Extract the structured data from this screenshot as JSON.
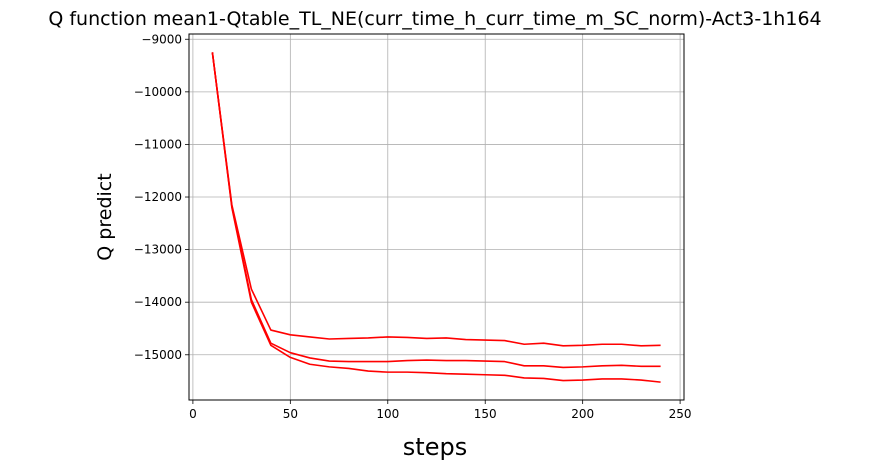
{
  "chart_data": {
    "type": "line",
    "title": "Q function mean1-Qtable_TL_NE(curr_time_h_curr_time_m_SC_norm)-Act3-1h164",
    "xlabel": "steps",
    "ylabel": "Q predict",
    "xlim": [
      -2,
      252
    ],
    "ylim": [
      -15860,
      -8900
    ],
    "xticks": [
      0,
      50,
      100,
      150,
      200,
      250
    ],
    "yticks": [
      -15000,
      -14000,
      -13000,
      -12000,
      -11000,
      -10000,
      -9000
    ],
    "grid": true,
    "color": "#ff0000",
    "x": [
      10,
      20,
      30,
      40,
      50,
      60,
      70,
      80,
      90,
      100,
      110,
      120,
      130,
      140,
      150,
      160,
      170,
      180,
      190,
      200,
      210,
      220,
      230,
      240
    ],
    "series": [
      {
        "values": [
          -9250,
          -12150,
          -13750,
          -14530,
          -14620,
          -14660,
          -14700,
          -14690,
          -14680,
          -14660,
          -14670,
          -14690,
          -14680,
          -14710,
          -14720,
          -14730,
          -14800,
          -14780,
          -14830,
          -14820,
          -14800,
          -14800,
          -14830,
          -14820
        ]
      },
      {
        "values": [
          -9250,
          -12180,
          -13950,
          -14780,
          -14960,
          -15060,
          -15120,
          -15130,
          -15130,
          -15130,
          -15110,
          -15100,
          -15110,
          -15110,
          -15120,
          -15130,
          -15210,
          -15210,
          -15240,
          -15230,
          -15210,
          -15200,
          -15220,
          -15220
        ]
      },
      {
        "values": [
          -9250,
          -12200,
          -14000,
          -14820,
          -15050,
          -15180,
          -15230,
          -15260,
          -15310,
          -15330,
          -15330,
          -15340,
          -15360,
          -15370,
          -15380,
          -15390,
          -15440,
          -15450,
          -15490,
          -15480,
          -15460,
          -15460,
          -15480,
          -15520
        ]
      }
    ]
  }
}
